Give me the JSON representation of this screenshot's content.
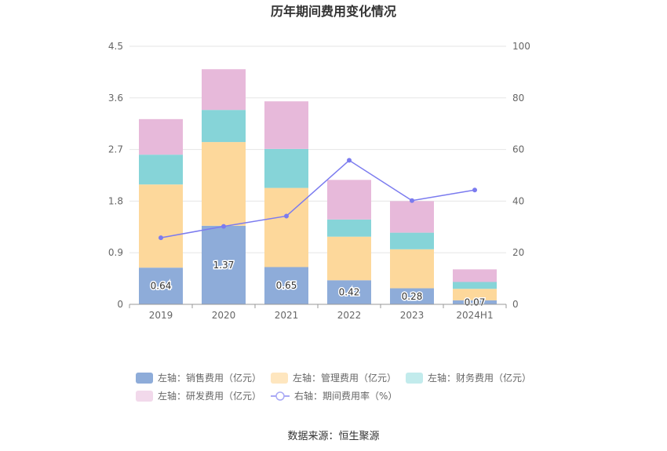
{
  "chart_data": {
    "type": "bar",
    "stacked": true,
    "title": "历年期间费用变化情况",
    "categories": [
      "2019",
      "2020",
      "2021",
      "2022",
      "2023",
      "2024H1"
    ],
    "y_left": {
      "ticks": [
        "0",
        "0.9",
        "1.8",
        "2.7",
        "3.6",
        "4.5"
      ],
      "min": 0,
      "max": 4.5
    },
    "y_right": {
      "ticks": [
        "0",
        "20",
        "40",
        "60",
        "80",
        "100"
      ],
      "min": 0,
      "max": 100
    },
    "series": [
      {
        "name": "左轴：销售费用（亿元）",
        "color": "#8eacd9",
        "values": [
          0.64,
          1.37,
          0.65,
          0.42,
          0.28,
          0.07
        ]
      },
      {
        "name": "左轴：管理费用（亿元）",
        "color": "#fdd89b",
        "values": [
          1.45,
          1.46,
          1.38,
          0.76,
          0.68,
          0.2
        ]
      },
      {
        "name": "左轴：财务费用（亿元）",
        "color": "#86d4d8",
        "values": [
          0.52,
          0.56,
          0.68,
          0.3,
          0.29,
          0.12
        ]
      },
      {
        "name": "左轴：研发费用（亿元）",
        "color": "#e7b9da",
        "values": [
          0.62,
          0.71,
          0.83,
          0.69,
          0.55,
          0.22
        ]
      }
    ],
    "line": {
      "name": "右轴：期间费用率（%）",
      "color": "#7b7bef",
      "values": [
        25.8,
        30.2,
        34.2,
        55.8,
        40.2,
        44.3
      ]
    },
    "value_labels": [
      "0.64",
      "1.37",
      "0.65",
      "0.42",
      "0.28",
      "0.07"
    ]
  },
  "source": "数据来源：恒生聚源"
}
